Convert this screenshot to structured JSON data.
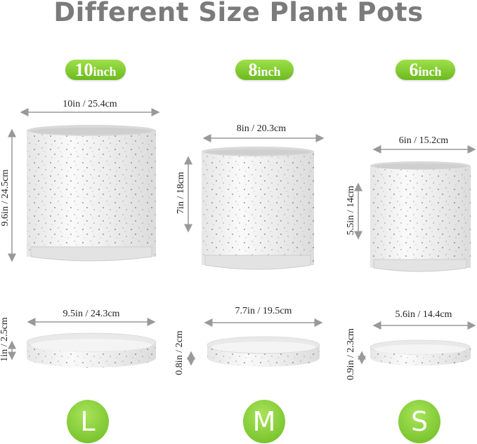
{
  "title": "Different Size Plant Pots",
  "accent_color": "#7cc62c",
  "sizes": [
    {
      "badge_num": "10",
      "badge_unit": "inch",
      "pot_width": "10in / 25.4cm",
      "pot_height": "9.6in / 24.5cm",
      "saucer_width": "9.5in / 24.3cm",
      "saucer_height": "1in / 2.5cm",
      "letter": "L"
    },
    {
      "badge_num": "8",
      "badge_unit": "inch",
      "pot_width": "8in / 20.3cm",
      "pot_height": "7in / 18cm",
      "saucer_width": "7.7in / 19.5cm",
      "saucer_height": "0.8in / 2cm",
      "letter": "M"
    },
    {
      "badge_num": "6",
      "badge_unit": "inch",
      "pot_width": "6in / 15.2cm",
      "pot_height": "5.5in / 14cm",
      "saucer_width": "5.6in / 14.4cm",
      "saucer_height": "0.9in / 2.3cm",
      "letter": "S"
    }
  ]
}
